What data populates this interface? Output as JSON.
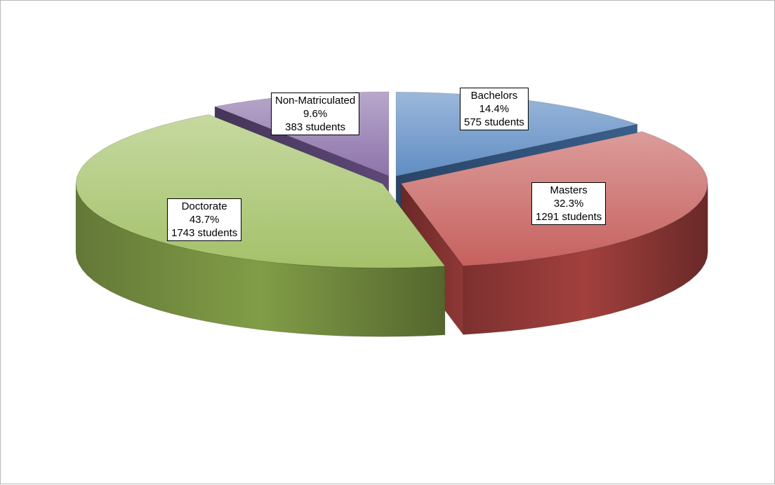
{
  "chart_data": {
    "type": "pie",
    "title": "",
    "unit": "students",
    "slices": [
      {
        "name": "Bachelors",
        "percent_label": "14.4%",
        "count_label": "575 students",
        "value": 575,
        "percent": 14.4,
        "color": "#4a7ebb"
      },
      {
        "name": "Masters",
        "percent_label": "32.3%",
        "count_label": "1291 students",
        "value": 1291,
        "percent": 32.3,
        "color": "#be4b48"
      },
      {
        "name": "Doctorate",
        "percent_label": "43.7%",
        "count_label": "1743 students",
        "value": 1743,
        "percent": 43.7,
        "color": "#98b954"
      },
      {
        "name": "Non-Matriculated",
        "percent_label": "9.6%",
        "count_label": "383 students",
        "value": 383,
        "percent": 9.6,
        "color": "#7d60a0"
      }
    ]
  }
}
